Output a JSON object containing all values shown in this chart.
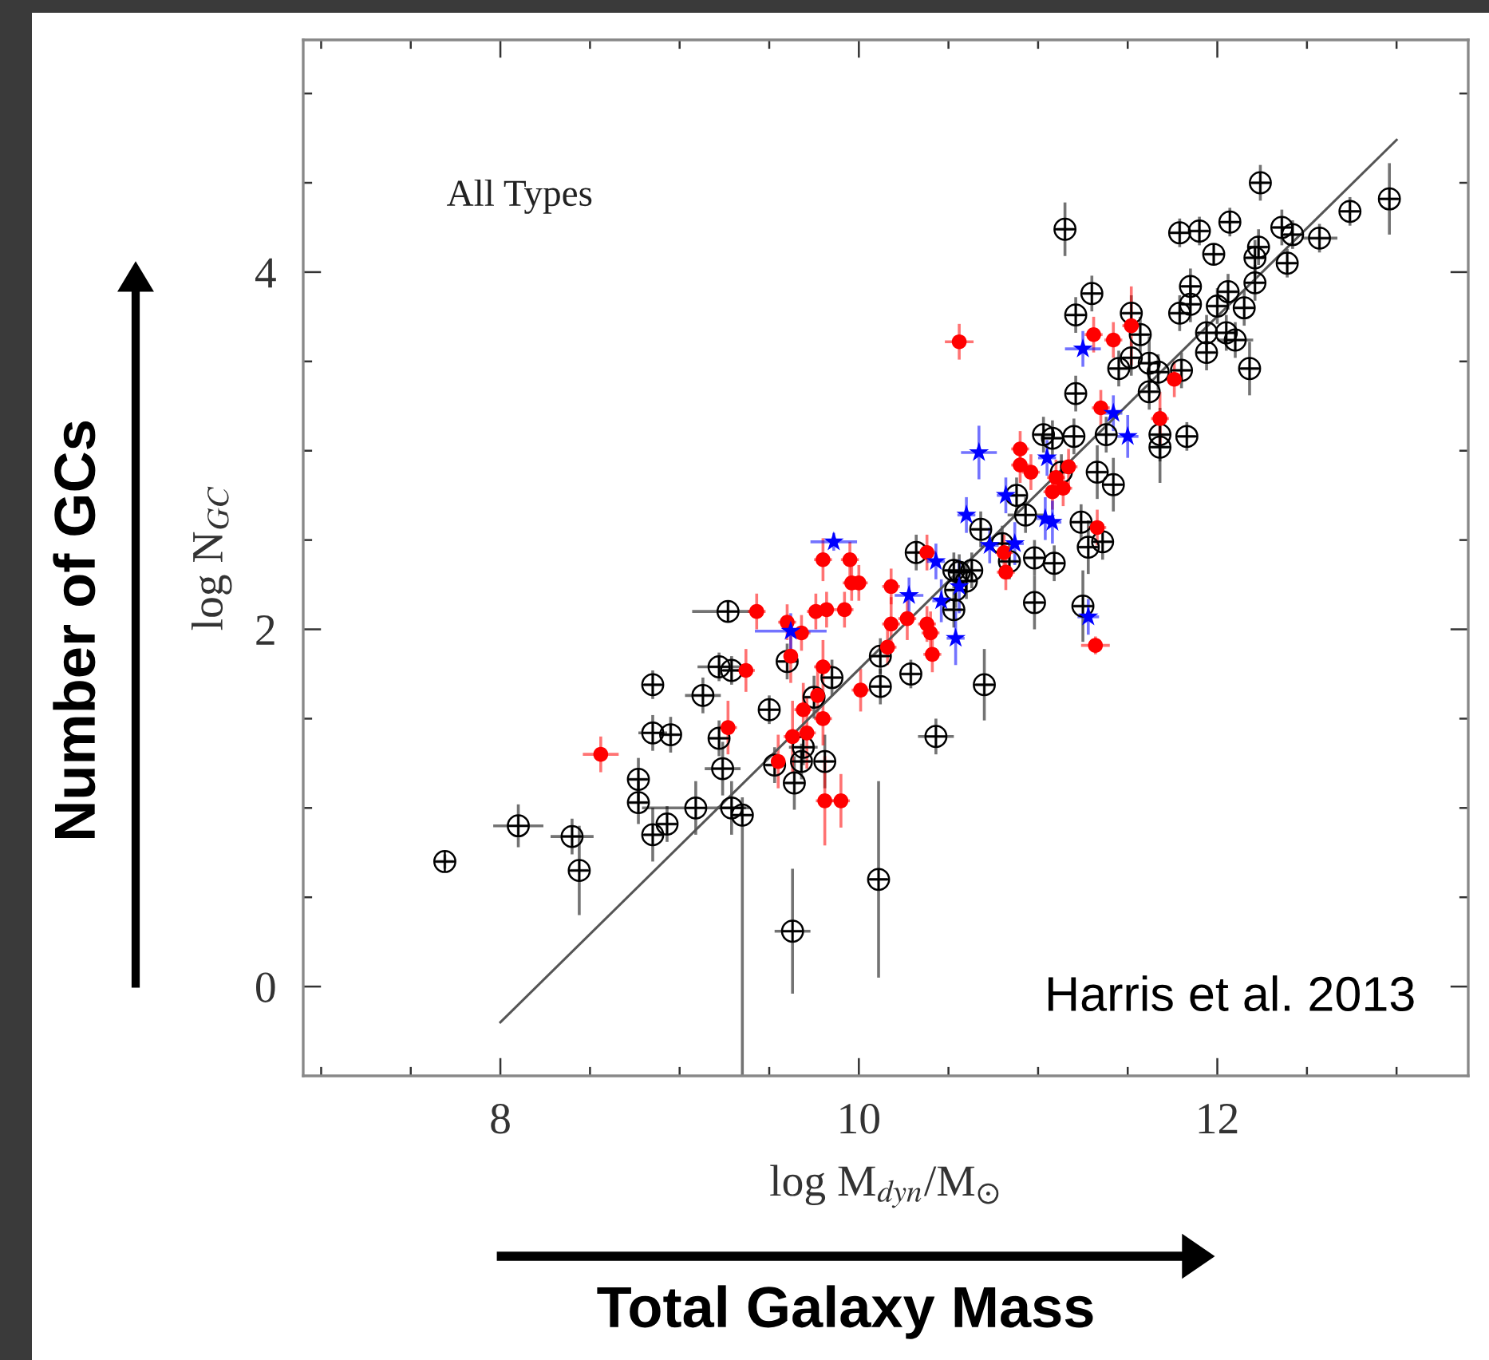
{
  "chart_data": {
    "type": "scatter",
    "xlabel": "log M$_{dyn}$/M$_{⊙}$",
    "ylabel": "log N$_{GC}$",
    "annotations": [
      "All Types",
      "Harris et al. 2013",
      "Number of GCs",
      "Total Galaxy Mass"
    ],
    "xlim": [
      6.9,
      13.4
    ],
    "ylim": [
      -0.5,
      5.3
    ],
    "xticks": [
      {
        "value": 7,
        "label": null
      },
      {
        "value": 7.5,
        "label": null
      },
      8,
      {
        "value": 8.5,
        "label": null
      },
      {
        "value": 9,
        "label": null
      },
      {
        "value": 9.5,
        "label": null
      },
      10,
      {
        "value": 10.5,
        "label": null
      },
      {
        "value": 11,
        "label": null
      },
      {
        "value": 11.5,
        "label": null
      },
      12,
      {
        "value": 12.5,
        "label": null
      },
      {
        "value": 13,
        "label": null
      }
    ],
    "yticks": [
      0,
      {
        "value": 0.5,
        "label": null
      },
      {
        "value": 1,
        "label": null
      },
      {
        "value": 1.5,
        "label": null
      },
      2,
      {
        "value": 2.5,
        "label": null
      },
      {
        "value": 3,
        "label": null
      },
      {
        "value": 3.5,
        "label": null
      },
      4,
      {
        "value": 4.5,
        "label": null
      },
      {
        "value": 5,
        "label": null
      }
    ],
    "grid": false,
    "legend": false,
    "series": [
      {
        "type": "scatter",
        "marker": "cross",
        "color": "#000000",
        "x": [
          7.69,
          8.1,
          8.4,
          8.44,
          8.77,
          8.77,
          8.85,
          8.85,
          8.85,
          8.93,
          8.95,
          9.13,
          9.09,
          9.22,
          9.29,
          9.27,
          9.22,
          9.24,
          9.29,
          9.35,
          9.5,
          9.53,
          9.6,
          9.64,
          9.68,
          9.69,
          9.81,
          9.75,
          9.85,
          9.63,
          10.11,
          10.12,
          10.12,
          10.29,
          10.32,
          10.43,
          10.7,
          10.53,
          10.56,
          10.6,
          10.54,
          10.53,
          10.63,
          10.68,
          10.8,
          10.84,
          10.98,
          10.98,
          10.88,
          10.93,
          11.03,
          11.08,
          11.13,
          11.09,
          11.2,
          11.24,
          11.28,
          11.36,
          11.25,
          11.21,
          11.21,
          11.3,
          11.15,
          11.38,
          11.42,
          11.33,
          11.45,
          11.52,
          11.52,
          11.57,
          11.62,
          11.62,
          11.68,
          11.68,
          11.83,
          11.67,
          11.8,
          11.79,
          11.85,
          11.85,
          11.79,
          11.9,
          11.98,
          12.07,
          11.94,
          11.94,
          12.05,
          12.06,
          12.0,
          12.1,
          12.15,
          12.18,
          12.21,
          12.23,
          12.21,
          12.24,
          12.36,
          12.42,
          12.39,
          12.57,
          12.74,
          12.96
        ],
        "values": [
          0.7,
          0.9,
          0.84,
          0.65,
          1.16,
          1.03,
          1.69,
          1.42,
          0.85,
          0.91,
          1.41,
          1.63,
          1.0,
          1.79,
          1.77,
          2.1,
          1.39,
          1.22,
          1.0,
          0.96,
          1.55,
          1.24,
          1.82,
          1.14,
          1.26,
          1.34,
          1.26,
          1.62,
          1.73,
          0.31,
          0.6,
          1.85,
          1.68,
          1.75,
          2.43,
          1.4,
          1.69,
          2.33,
          2.32,
          2.27,
          2.22,
          2.11,
          2.33,
          2.56,
          2.48,
          2.38,
          2.4,
          2.15,
          2.75,
          2.64,
          3.09,
          3.07,
          2.88,
          2.37,
          3.08,
          2.6,
          2.46,
          2.49,
          2.13,
          3.32,
          3.76,
          3.88,
          4.24,
          3.09,
          2.81,
          2.88,
          3.46,
          3.77,
          3.52,
          3.65,
          3.49,
          3.33,
          3.09,
          3.02,
          3.08,
          3.44,
          3.45,
          3.77,
          3.92,
          3.82,
          4.22,
          4.23,
          4.1,
          4.28,
          3.66,
          3.55,
          3.66,
          3.89,
          3.81,
          3.62,
          3.8,
          3.46,
          4.08,
          4.14,
          3.94,
          4.5,
          4.25,
          4.21,
          4.05,
          4.19,
          4.34,
          4.41
        ],
        "errors": [
          0.04,
          0.12,
          0.1,
          0.25,
          0.12,
          0.12,
          0.08,
          0.1,
          0.15,
          0.1,
          0.1,
          0.1,
          0.15,
          0.08,
          0.08,
          0.06,
          0.1,
          0.15,
          0.15,
          [
            -0.5,
            1.06
          ],
          0.08,
          0.1,
          0.1,
          0.15,
          0.1,
          0.1,
          0.15,
          0.12,
          0.1,
          0.35,
          0.55,
          0.1,
          0.1,
          0.08,
          0.1,
          0.1,
          0.2,
          0.1,
          0.1,
          0.1,
          0.1,
          0.1,
          0.1,
          0.1,
          0.1,
          0.1,
          0.1,
          0.15,
          0.1,
          0.1,
          0.1,
          0.1,
          0.1,
          0.1,
          0.1,
          0.1,
          0.15,
          0.1,
          0.2,
          0.1,
          0.1,
          0.1,
          0.15,
          0.1,
          0.15,
          0.15,
          0.1,
          0.1,
          0.1,
          0.1,
          0.15,
          0.1,
          0.15,
          0.2,
          0.08,
          0.1,
          0.1,
          0.1,
          0.1,
          0.1,
          0.08,
          0.08,
          0.06,
          0.08,
          0.1,
          0.1,
          0.1,
          0.1,
          0.1,
          0.1,
          0.1,
          0.15,
          0.1,
          0.1,
          0.1,
          0.1,
          0.1,
          0.08,
          0.08,
          0.08,
          0.08,
          0.2
        ],
        "xerrors": [
          0.05,
          0.14,
          0.12,
          0.05,
          0.05,
          0.05,
          0.05,
          0.08,
          0.05,
          0.05,
          0.05,
          0.1,
          0.3,
          0.12,
          0.05,
          0.2,
          0.06,
          0.1,
          0.08,
          0.05,
          0.06,
          0.05,
          0.05,
          0.05,
          0.05,
          0.08,
          0.05,
          0.05,
          0.05,
          0.1,
          0.05,
          0.05,
          0.05,
          0.05,
          0.05,
          0.1,
          0.05,
          0.05,
          0.05,
          0.05,
          0.05,
          0.05,
          0.05,
          0.05,
          0.05,
          0.05,
          0.05,
          0.05,
          0.05,
          0.1,
          0.05,
          0.05,
          0.05,
          0.05,
          0.05,
          0.05,
          0.05,
          0.05,
          0.05,
          0.05,
          0.05,
          0.05,
          0.05,
          0.05,
          0.05,
          0.05,
          0.05,
          0.05,
          0.05,
          0.05,
          0.05,
          0.05,
          0.05,
          0.05,
          0.05,
          0.05,
          0.05,
          0.05,
          0.05,
          0.05,
          0.05,
          0.05,
          0.05,
          0.05,
          0.05,
          0.05,
          0.05,
          0.05,
          0.05,
          0.1,
          0.05,
          0.05,
          0.05,
          0.05,
          0.05,
          0.05,
          0.05,
          0.05,
          0.05,
          0.1,
          0.05,
          0.05
        ]
      },
      {
        "type": "scatter",
        "marker": "circle",
        "color": "#ff0000",
        "x": [
          8.56,
          9.43,
          9.37,
          9.27,
          9.6,
          9.68,
          9.62,
          9.76,
          9.82,
          9.92,
          9.8,
          9.95,
          9.96,
          10.0,
          10.18,
          10.18,
          10.27,
          10.38,
          10.38,
          10.4,
          10.41,
          10.56,
          9.8,
          9.77,
          10.01,
          9.69,
          9.71,
          9.63,
          9.55,
          9.8,
          9.81,
          9.9,
          10.16,
          10.81,
          10.9,
          10.96,
          10.9,
          11.08,
          11.1,
          11.17,
          11.14,
          11.35,
          11.31,
          11.42,
          11.52,
          11.68,
          11.76,
          11.33,
          11.32,
          10.82
        ],
        "values": [
          1.3,
          2.1,
          1.77,
          1.45,
          2.04,
          1.98,
          1.85,
          2.1,
          2.11,
          2.11,
          2.39,
          2.39,
          2.26,
          2.26,
          2.24,
          2.03,
          2.06,
          2.43,
          2.03,
          1.98,
          1.86,
          3.61,
          1.79,
          1.63,
          1.66,
          1.55,
          1.42,
          1.4,
          1.26,
          1.5,
          1.04,
          1.04,
          1.9,
          2.43,
          2.92,
          2.88,
          3.01,
          2.77,
          2.85,
          2.91,
          2.79,
          3.24,
          3.65,
          3.62,
          3.7,
          3.18,
          3.4,
          2.57,
          1.91,
          2.32
        ],
        "errors": [
          0.1,
          0.1,
          0.12,
          0.15,
          0.1,
          0.1,
          0.15,
          0.1,
          0.1,
          0.1,
          0.12,
          0.1,
          0.1,
          0.1,
          0.1,
          0.15,
          0.12,
          0.1,
          0.1,
          0.12,
          0.1,
          0.1,
          0.15,
          0.15,
          0.12,
          0.15,
          0.2,
          0.2,
          0.15,
          0.15,
          0.25,
          0.15,
          0.1,
          0.1,
          0.1,
          0.1,
          0.1,
          0.1,
          0.1,
          0.1,
          0.1,
          0.1,
          0.1,
          0.1,
          0.22,
          0.15,
          0.1,
          0.1,
          0.05,
          0.1
        ],
        "xerrors": [
          0.1,
          0.05,
          0.05,
          0.05,
          0.05,
          0.05,
          null,
          0.05,
          0.05,
          0.05,
          0.05,
          0.05,
          0.05,
          0.05,
          0.05,
          0.05,
          0.05,
          0.05,
          0.05,
          0.05,
          0.05,
          0.08,
          0.05,
          null,
          0.05,
          0.05,
          0.05,
          0.05,
          null,
          0.05,
          0.05,
          0.05,
          0.05,
          0.05,
          0.05,
          0.05,
          0.05,
          0.05,
          0.05,
          0.05,
          0.05,
          0.05,
          0.05,
          0.05,
          0.05,
          0.05,
          0.05,
          0.05,
          0.08,
          0.05
        ]
      },
      {
        "type": "scatter",
        "marker": "star",
        "color": "#0000ff",
        "x": [
          9.86,
          9.62,
          10.28,
          10.43,
          10.46,
          10.54,
          10.6,
          10.67,
          10.73,
          10.82,
          10.87,
          11.04,
          11.08,
          11.05,
          11.25,
          11.42,
          11.5,
          11.28,
          10.56
        ],
        "values": [
          2.49,
          1.99,
          2.19,
          2.38,
          2.16,
          1.95,
          2.64,
          2.99,
          2.47,
          2.75,
          2.48,
          2.62,
          2.6,
          2.96,
          3.57,
          3.21,
          3.08,
          2.07,
          2.24
        ],
        "errors": [
          0.05,
          0.1,
          0.1,
          0.1,
          0.12,
          0.15,
          0.1,
          0.15,
          0.1,
          0.1,
          0.12,
          0.12,
          0.12,
          0.1,
          0.1,
          0.1,
          0.12,
          0.1,
          0.15
        ],
        "xerrors": [
          0.13,
          0.2,
          0.08,
          0.05,
          0.05,
          0.05,
          0.05,
          0.1,
          0.05,
          0.05,
          0.05,
          0.05,
          0.05,
          0.05,
          0.1,
          0.05,
          0.06,
          0.06,
          null
        ]
      },
      {
        "type": "line",
        "color": "#555555",
        "x": [
          8,
          13
        ],
        "values": [
          -0.2,
          4.74
        ]
      }
    ]
  }
}
